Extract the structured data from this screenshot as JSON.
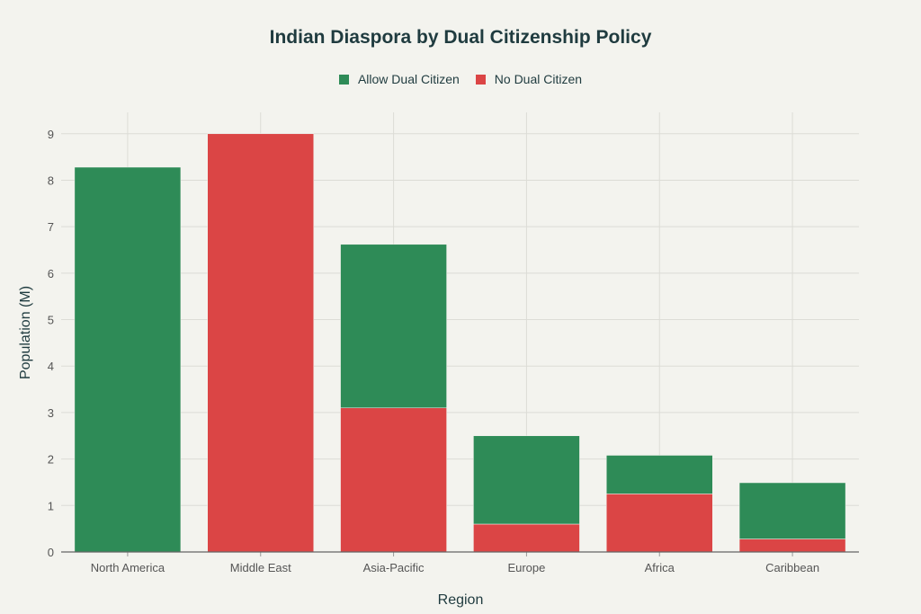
{
  "chart_data": {
    "type": "bar",
    "stacked": true,
    "title": "Indian Diaspora by Dual Citizenship Policy",
    "xlabel": "Region",
    "ylabel": "Population (M)",
    "categories": [
      "North America",
      "Middle East",
      "Asia-Pacific",
      "Europe",
      "Africa",
      "Caribbean"
    ],
    "series": [
      {
        "name": "No Dual Citizen",
        "color": "#db4545",
        "values": [
          0,
          9.0,
          3.1,
          0.6,
          1.25,
          0.28
        ]
      },
      {
        "name": "Allow Dual Citizen",
        "color": "#2e8b57",
        "values": [
          8.28,
          0,
          3.52,
          1.9,
          0.83,
          1.21
        ]
      }
    ],
    "legend_order": [
      "Allow Dual Citizen",
      "No Dual Citizen"
    ],
    "yticks": [
      0,
      1,
      2,
      3,
      4,
      5,
      6,
      7,
      8,
      9
    ],
    "ylim": [
      0,
      9.46
    ],
    "grid": true,
    "legend_position": "top-center"
  }
}
